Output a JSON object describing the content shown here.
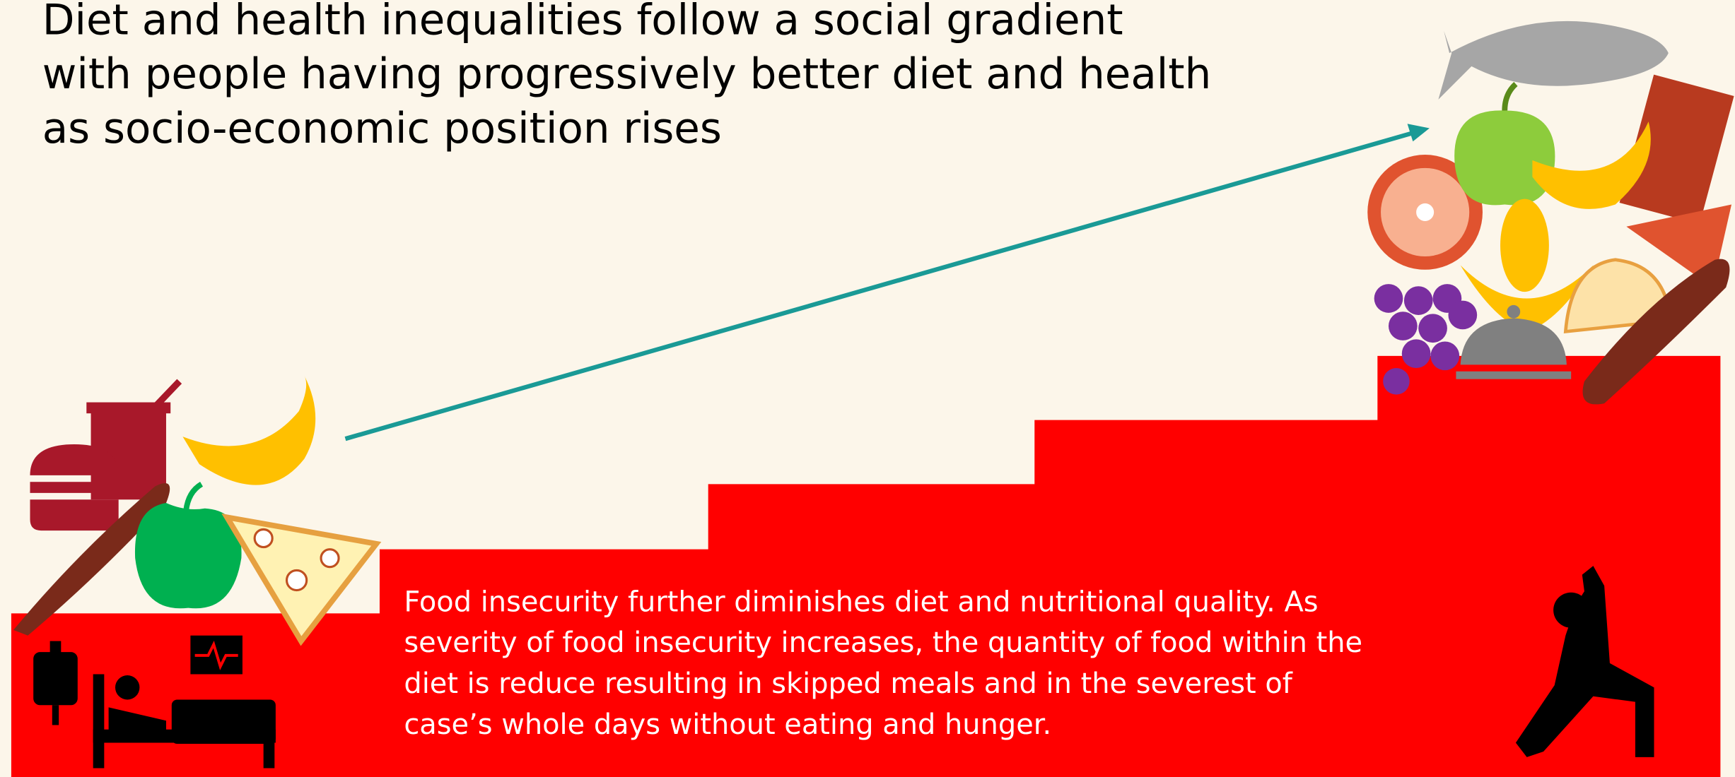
{
  "title": {
    "lines": [
      "Diet and health inequalities follow a social gradient",
      "with people having progressively better diet and health",
      "as socio-economic position rises"
    ]
  },
  "body": {
    "lines": [
      "Food insecurity further diminishes diet and nutritional quality. As",
      "severity of food insecurity  increases, the quantity of food within the",
      "diet is reduce resulting in skipped meals and in the severest of",
      "case’s whole days without eating and hunger."
    ]
  }
}
